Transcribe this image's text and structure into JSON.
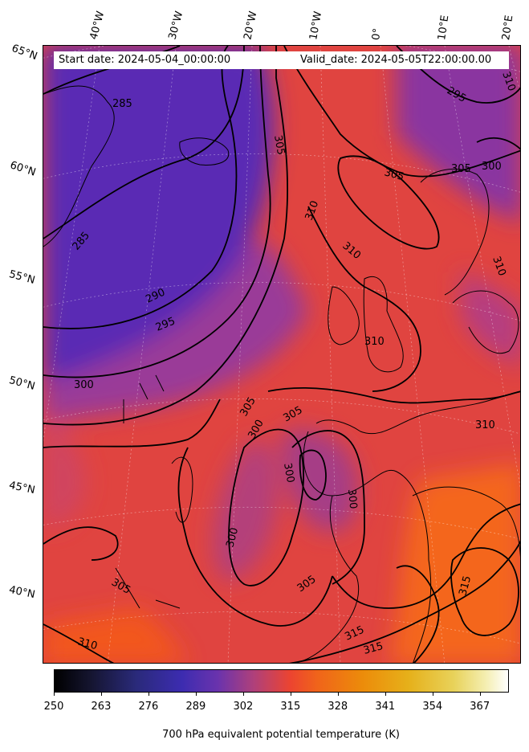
{
  "map": {
    "start_date": "Start date: 2024-05-04_00:00:00",
    "valid_date": "Valid_date: 2024-05-05T22:00:00.00",
    "longitude_labels": [
      "40°W",
      "30°W",
      "20°W",
      "10°W",
      "0°",
      "10°E",
      "20°E"
    ],
    "latitude_labels": [
      "65°N",
      "60°N",
      "55°N",
      "50°N",
      "45°N",
      "40°N"
    ],
    "contour_labels": [
      "285",
      "285",
      "290",
      "295",
      "300",
      "300",
      "300",
      "300",
      "300",
      "305",
      "305",
      "305",
      "305",
      "305",
      "305",
      "310",
      "310",
      "310",
      "310",
      "310",
      "315",
      "315",
      "315",
      "295",
      "300",
      "310",
      "310",
      "305"
    ],
    "colorbar": {
      "ticks": [
        "250",
        "263",
        "276",
        "289",
        "302",
        "315",
        "328",
        "341",
        "354",
        "367"
      ],
      "label": "700 hPa equivalent potential temperature (K)",
      "colormap": "CMRmap"
    },
    "colors": {
      "cold": "#5a2bb4",
      "mid": "#c04076",
      "warm": "#f0482c",
      "hot": "#f26a1c"
    }
  }
}
